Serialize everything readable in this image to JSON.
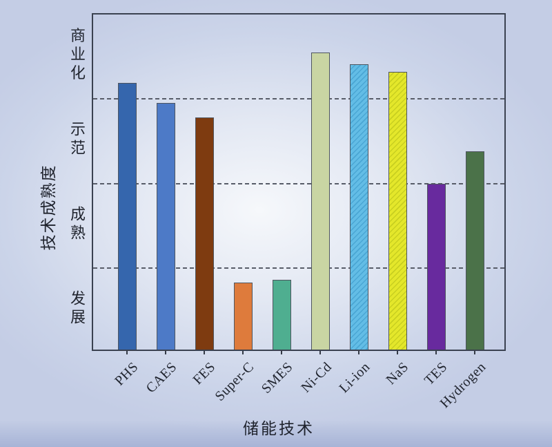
{
  "chart_data": {
    "type": "bar",
    "title": "",
    "xlabel": "储能技术",
    "ylabel": "技术成熟度",
    "ylim": [
      0,
      4
    ],
    "grid": "horizontal-dashed",
    "gridline_values": [
      1,
      2,
      3
    ],
    "ytick_band_labels_top_to_bottom": [
      "商业化",
      "示范",
      "成熟",
      "发展"
    ],
    "categories": [
      "PHS",
      "CAES",
      "FES",
      "Super-C",
      "SMES",
      "Ni-Cd",
      "Li-ion",
      "NaS",
      "TES",
      "Hydrogen"
    ],
    "values": [
      3.16,
      2.92,
      2.75,
      0.79,
      0.83,
      3.52,
      3.38,
      3.29,
      1.96,
      2.35
    ],
    "bar_colors": [
      "#3566ad",
      "#4d7ac7",
      "#7e3b10",
      "#de7b3c",
      "#4fae90",
      "#c9d5a3",
      "#63bde6",
      "#e4e72b",
      "#682a9e",
      "#4b7249"
    ],
    "bar_hatches": [
      null,
      null,
      null,
      null,
      null,
      null,
      "/",
      "/",
      null,
      null
    ],
    "bar_hatch_colors": [
      null,
      null,
      null,
      null,
      null,
      null,
      "#4aa6d4",
      "#c8cf20",
      null,
      null
    ],
    "legend": "none"
  },
  "style_colors": {
    "axis_border": "#3a4150",
    "gridline": "#575c68",
    "bar_outline": "#4e555f",
    "background_center": "#f6f8fb",
    "background_edge": "#c4cde5"
  }
}
